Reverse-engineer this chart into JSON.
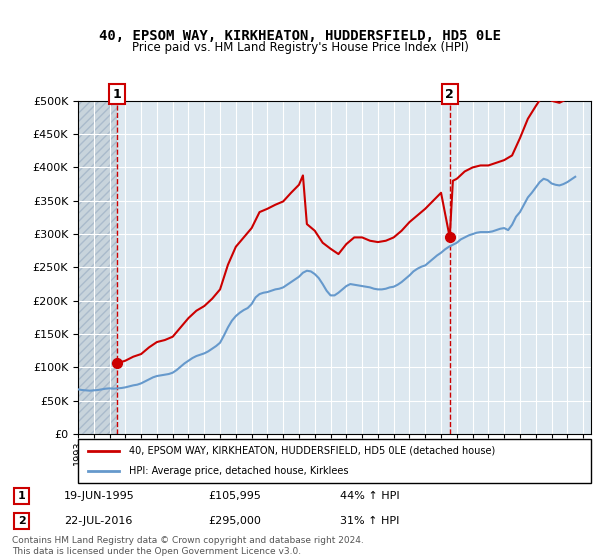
{
  "title": "40, EPSOM WAY, KIRKHEATON, HUDDERSFIELD, HD5 0LE",
  "subtitle": "Price paid vs. HM Land Registry's House Price Index (HPI)",
  "ylabel_ticks": [
    0,
    50000,
    100000,
    150000,
    200000,
    250000,
    300000,
    350000,
    400000,
    450000,
    500000
  ],
  "ylim": [
    0,
    500000
  ],
  "xlim_start": 1993.0,
  "xlim_end": 2025.5,
  "sale1_x": 1995.46,
  "sale1_y": 105995,
  "sale2_x": 2016.55,
  "sale2_y": 295000,
  "legend_line1": "40, EPSOM WAY, KIRKHEATON, HUDDERSFIELD, HD5 0LE (detached house)",
  "legend_line2": "HPI: Average price, detached house, Kirklees",
  "footer": "Contains HM Land Registry data © Crown copyright and database right 2024.\nThis data is licensed under the Open Government Licence v3.0.",
  "line_color_red": "#cc0000",
  "line_color_blue": "#6699cc",
  "bg_color": "#dde8f0",
  "hatch_color": "#c8d4dc",
  "hpi_data": [
    [
      1993.0,
      67000
    ],
    [
      1993.25,
      66000
    ],
    [
      1993.5,
      65500
    ],
    [
      1993.75,
      65000
    ],
    [
      1994.0,
      65500
    ],
    [
      1994.25,
      66000
    ],
    [
      1994.5,
      67000
    ],
    [
      1994.75,
      68000
    ],
    [
      1995.0,
      68500
    ],
    [
      1995.25,
      68000
    ],
    [
      1995.5,
      68500
    ],
    [
      1995.75,
      69000
    ],
    [
      1996.0,
      70000
    ],
    [
      1996.25,
      71500
    ],
    [
      1996.5,
      73000
    ],
    [
      1996.75,
      74000
    ],
    [
      1997.0,
      76000
    ],
    [
      1997.25,
      79000
    ],
    [
      1997.5,
      82000
    ],
    [
      1997.75,
      85000
    ],
    [
      1998.0,
      87000
    ],
    [
      1998.25,
      88000
    ],
    [
      1998.5,
      89000
    ],
    [
      1998.75,
      90000
    ],
    [
      1999.0,
      92000
    ],
    [
      1999.25,
      96000
    ],
    [
      1999.5,
      101000
    ],
    [
      1999.75,
      106000
    ],
    [
      2000.0,
      110000
    ],
    [
      2000.25,
      114000
    ],
    [
      2000.5,
      117000
    ],
    [
      2000.75,
      119000
    ],
    [
      2001.0,
      121000
    ],
    [
      2001.25,
      124000
    ],
    [
      2001.5,
      128000
    ],
    [
      2001.75,
      132000
    ],
    [
      2002.0,
      137000
    ],
    [
      2002.25,
      148000
    ],
    [
      2002.5,
      160000
    ],
    [
      2002.75,
      170000
    ],
    [
      2003.0,
      177000
    ],
    [
      2003.25,
      182000
    ],
    [
      2003.5,
      186000
    ],
    [
      2003.75,
      189000
    ],
    [
      2004.0,
      195000
    ],
    [
      2004.25,
      205000
    ],
    [
      2004.5,
      210000
    ],
    [
      2004.75,
      212000
    ],
    [
      2005.0,
      213000
    ],
    [
      2005.25,
      215000
    ],
    [
      2005.5,
      217000
    ],
    [
      2005.75,
      218000
    ],
    [
      2006.0,
      220000
    ],
    [
      2006.25,
      224000
    ],
    [
      2006.5,
      228000
    ],
    [
      2006.75,
      232000
    ],
    [
      2007.0,
      236000
    ],
    [
      2007.25,
      242000
    ],
    [
      2007.5,
      245000
    ],
    [
      2007.75,
      244000
    ],
    [
      2008.0,
      240000
    ],
    [
      2008.25,
      234000
    ],
    [
      2008.5,
      225000
    ],
    [
      2008.75,
      215000
    ],
    [
      2009.0,
      208000
    ],
    [
      2009.25,
      208000
    ],
    [
      2009.5,
      212000
    ],
    [
      2009.75,
      217000
    ],
    [
      2010.0,
      222000
    ],
    [
      2010.25,
      225000
    ],
    [
      2010.5,
      224000
    ],
    [
      2010.75,
      223000
    ],
    [
      2011.0,
      222000
    ],
    [
      2011.25,
      221000
    ],
    [
      2011.5,
      220000
    ],
    [
      2011.75,
      218000
    ],
    [
      2012.0,
      217000
    ],
    [
      2012.25,
      217000
    ],
    [
      2012.5,
      218000
    ],
    [
      2012.75,
      220000
    ],
    [
      2013.0,
      221000
    ],
    [
      2013.25,
      224000
    ],
    [
      2013.5,
      228000
    ],
    [
      2013.75,
      233000
    ],
    [
      2014.0,
      238000
    ],
    [
      2014.25,
      244000
    ],
    [
      2014.5,
      248000
    ],
    [
      2014.75,
      251000
    ],
    [
      2015.0,
      253000
    ],
    [
      2015.25,
      258000
    ],
    [
      2015.5,
      263000
    ],
    [
      2015.75,
      268000
    ],
    [
      2016.0,
      272000
    ],
    [
      2016.25,
      277000
    ],
    [
      2016.5,
      281000
    ],
    [
      2016.75,
      284000
    ],
    [
      2017.0,
      287000
    ],
    [
      2017.25,
      292000
    ],
    [
      2017.5,
      295000
    ],
    [
      2017.75,
      298000
    ],
    [
      2018.0,
      300000
    ],
    [
      2018.25,
      302000
    ],
    [
      2018.5,
      303000
    ],
    [
      2018.75,
      303000
    ],
    [
      2019.0,
      303000
    ],
    [
      2019.25,
      304000
    ],
    [
      2019.5,
      306000
    ],
    [
      2019.75,
      308000
    ],
    [
      2020.0,
      309000
    ],
    [
      2020.25,
      306000
    ],
    [
      2020.5,
      314000
    ],
    [
      2020.75,
      326000
    ],
    [
      2021.0,
      333000
    ],
    [
      2021.25,
      344000
    ],
    [
      2021.5,
      355000
    ],
    [
      2021.75,
      362000
    ],
    [
      2022.0,
      370000
    ],
    [
      2022.25,
      378000
    ],
    [
      2022.5,
      383000
    ],
    [
      2022.75,
      381000
    ],
    [
      2023.0,
      376000
    ],
    [
      2023.25,
      374000
    ],
    [
      2023.5,
      373000
    ],
    [
      2023.75,
      375000
    ],
    [
      2024.0,
      378000
    ],
    [
      2024.25,
      382000
    ],
    [
      2024.5,
      386000
    ]
  ],
  "hpi_indexed_data": [
    [
      1995.46,
      105995
    ],
    [
      1996.0,
      110000
    ],
    [
      1996.5,
      116000
    ],
    [
      1997.0,
      120000
    ],
    [
      1997.5,
      130000
    ],
    [
      1998.0,
      138000
    ],
    [
      1998.5,
      141000
    ],
    [
      1999.0,
      146000
    ],
    [
      1999.5,
      160000
    ],
    [
      2000.0,
      174000
    ],
    [
      2000.5,
      185000
    ],
    [
      2001.0,
      192000
    ],
    [
      2001.5,
      203000
    ],
    [
      2002.0,
      217000
    ],
    [
      2002.5,
      254000
    ],
    [
      2003.0,
      281000
    ],
    [
      2003.5,
      295000
    ],
    [
      2004.0,
      309000
    ],
    [
      2004.5,
      333000
    ],
    [
      2005.0,
      338000
    ],
    [
      2005.5,
      344000
    ],
    [
      2006.0,
      349000
    ],
    [
      2006.5,
      362000
    ],
    [
      2007.0,
      374000
    ],
    [
      2007.25,
      388000
    ],
    [
      2007.5,
      315000
    ],
    [
      2008.0,
      305000
    ],
    [
      2008.5,
      287000
    ],
    [
      2009.0,
      278000
    ],
    [
      2009.5,
      270000
    ],
    [
      2010.0,
      285000
    ],
    [
      2010.5,
      295000
    ],
    [
      2011.0,
      295000
    ],
    [
      2011.5,
      290000
    ],
    [
      2012.0,
      288000
    ],
    [
      2012.5,
      290000
    ],
    [
      2013.0,
      295000
    ],
    [
      2013.5,
      305000
    ],
    [
      2014.0,
      318000
    ],
    [
      2014.5,
      328000
    ],
    [
      2015.0,
      338000
    ],
    [
      2015.5,
      350000
    ],
    [
      2016.0,
      362000
    ],
    [
      2016.55,
      295000
    ],
    [
      2016.75,
      380000
    ],
    [
      2017.0,
      383000
    ],
    [
      2017.5,
      394000
    ],
    [
      2018.0,
      400000
    ],
    [
      2018.5,
      403000
    ],
    [
      2019.0,
      403000
    ],
    [
      2019.5,
      407000
    ],
    [
      2020.0,
      411000
    ],
    [
      2020.5,
      418000
    ],
    [
      2021.0,
      444000
    ],
    [
      2021.5,
      473000
    ],
    [
      2022.0,
      492000
    ],
    [
      2022.5,
      510000
    ],
    [
      2023.0,
      500000
    ],
    [
      2023.5,
      497000
    ],
    [
      2024.0,
      503000
    ],
    [
      2024.5,
      515000
    ]
  ],
  "table_rows": [
    {
      "num": "1",
      "date": "19-JUN-1995",
      "price": "£105,995",
      "change": "44% ↑ HPI"
    },
    {
      "num": "2",
      "date": "22-JUL-2016",
      "price": "£295,000",
      "change": "31% ↑ HPI"
    }
  ]
}
